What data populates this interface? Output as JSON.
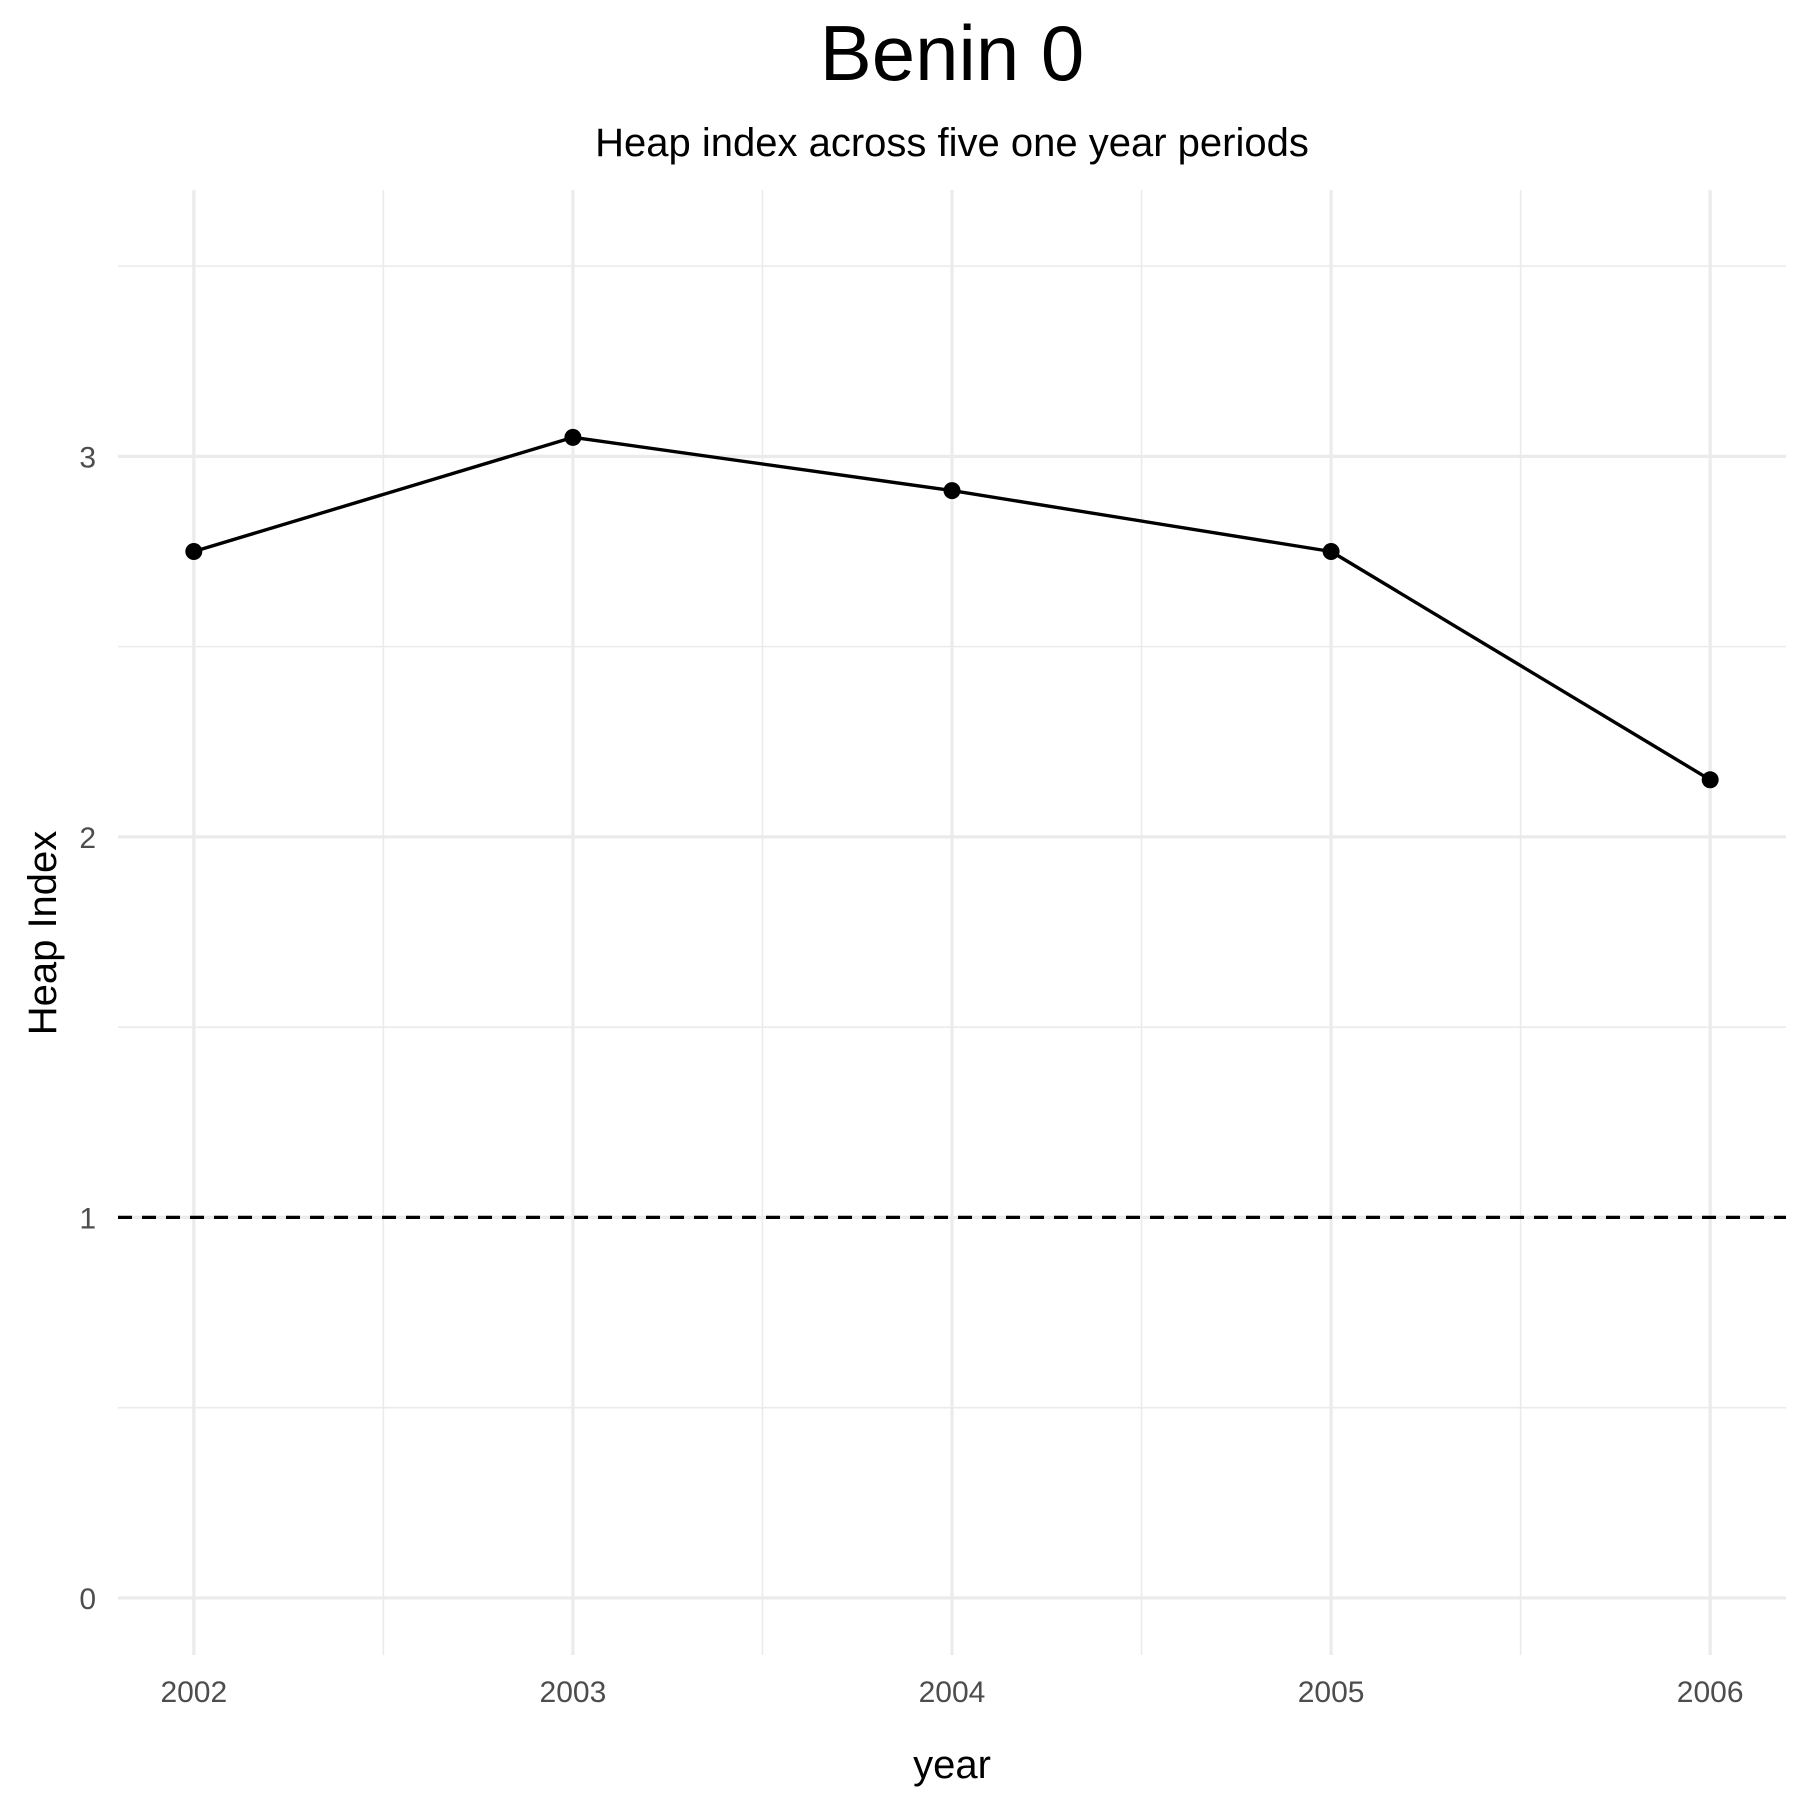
{
  "chart_data": {
    "type": "line",
    "title": "Benin 0",
    "subtitle": "Heap index across five one year periods",
    "xlabel": "year",
    "ylabel": "Heap Index",
    "x": [
      2002,
      2003,
      2004,
      2005,
      2006
    ],
    "series": [
      {
        "values": [
          2.75,
          3.05,
          2.91,
          2.75,
          2.15
        ],
        "color": "#000000",
        "markers": true
      }
    ],
    "xlim": [
      2001.8,
      2006.2
    ],
    "ylim": [
      -0.15,
      3.7
    ],
    "x_ticks": [
      2002,
      2003,
      2004,
      2005,
      2006
    ],
    "x_tick_labels": [
      "2002",
      "2003",
      "2004",
      "2005",
      "2006"
    ],
    "y_ticks": [
      0,
      1,
      2,
      3
    ],
    "y_tick_labels": [
      "0",
      "1",
      "2",
      "3"
    ],
    "reference_lines": [
      {
        "axis": "y",
        "value": 1,
        "style": "dashed",
        "color": "#000000"
      }
    ],
    "grid": true,
    "grid_color": "#ebebeb",
    "legend": "none",
    "background": "#ffffff"
  }
}
